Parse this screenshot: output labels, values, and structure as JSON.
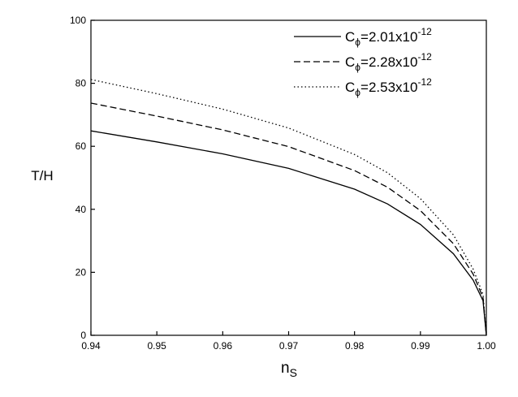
{
  "chart_data": {
    "type": "line",
    "xlabel_main": "n",
    "xlabel_sub": "S",
    "ylabel": "T/H",
    "xlim": [
      0.94,
      1.0
    ],
    "ylim": [
      0,
      100
    ],
    "x_ticks": [
      "0.94",
      "0.95",
      "0.96",
      "0.97",
      "0.98",
      "0.99",
      "1.00"
    ],
    "y_ticks": [
      "0",
      "20",
      "40",
      "60",
      "80",
      "100"
    ],
    "grid": false,
    "legend_position": "top-right",
    "series": [
      {
        "legend_main": "C",
        "legend_sub": "ϕ",
        "legend_mid": "=2.01x10",
        "legend_sup": "-12",
        "dash": "solid",
        "points": [
          [
            0.94,
            64.9
          ],
          [
            0.95,
            61.4
          ],
          [
            0.96,
            57.6
          ],
          [
            0.97,
            53.0
          ],
          [
            0.98,
            46.4
          ],
          [
            0.985,
            41.7
          ],
          [
            0.99,
            35.2
          ],
          [
            0.995,
            25.9
          ],
          [
            0.998,
            17.5
          ],
          [
            0.9995,
            11.0
          ],
          [
            1.0,
            0
          ]
        ]
      },
      {
        "legend_main": "C",
        "legend_sub": "ϕ",
        "legend_mid": "=2.28x10",
        "legend_sup": "-12",
        "dash": "dashed",
        "points": [
          [
            0.94,
            73.7
          ],
          [
            0.95,
            69.6
          ],
          [
            0.96,
            65.2
          ],
          [
            0.97,
            59.9
          ],
          [
            0.98,
            52.3
          ],
          [
            0.985,
            47.0
          ],
          [
            0.99,
            39.6
          ],
          [
            0.995,
            29.1
          ],
          [
            0.998,
            19.4
          ],
          [
            0.9995,
            12.0
          ],
          [
            1.0,
            0
          ]
        ]
      },
      {
        "legend_main": "C",
        "legend_sub": "ϕ",
        "legend_mid": "=2.53x10",
        "legend_sup": "-12",
        "dash": "dotted",
        "points": [
          [
            0.94,
            81.2
          ],
          [
            0.95,
            76.7
          ],
          [
            0.96,
            71.8
          ],
          [
            0.97,
            65.8
          ],
          [
            0.98,
            57.4
          ],
          [
            0.985,
            51.6
          ],
          [
            0.99,
            43.4
          ],
          [
            0.995,
            31.9
          ],
          [
            0.998,
            21.0
          ],
          [
            0.9995,
            13.0
          ],
          [
            1.0,
            0
          ]
        ]
      }
    ]
  }
}
